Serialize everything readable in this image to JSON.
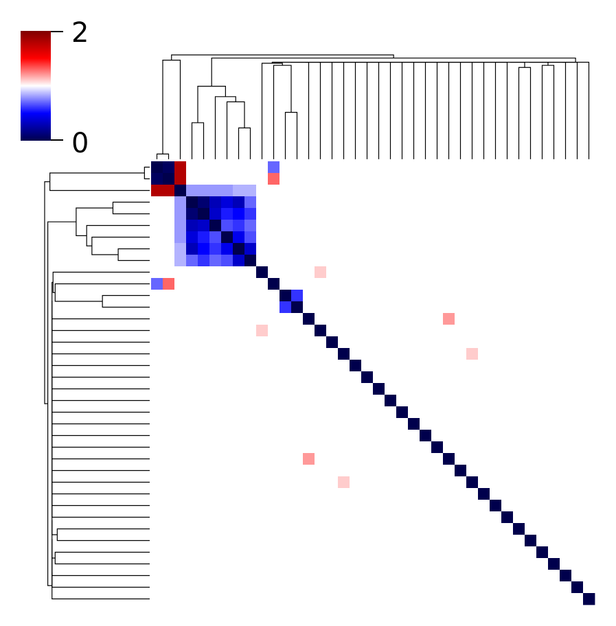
{
  "chart_data": {
    "type": "heatmap",
    "title": "",
    "n": 38,
    "colormap": "seismic",
    "colorbar": {
      "min": 0,
      "max": 2,
      "tick_labels": [
        "2",
        "0"
      ]
    },
    "diagonal": 0,
    "background": 1.0,
    "cells": [
      [
        0,
        1,
        0.05
      ],
      [
        0,
        2,
        1.8
      ],
      [
        0,
        10,
        0.7
      ],
      [
        1,
        2,
        1.8
      ],
      [
        1,
        10,
        1.3
      ],
      [
        3,
        4,
        0.1
      ],
      [
        3,
        5,
        0.3
      ],
      [
        3,
        6,
        0.4
      ],
      [
        3,
        7,
        0.3
      ],
      [
        3,
        8,
        0.7
      ],
      [
        3,
        2,
        0.8
      ],
      [
        4,
        5,
        0.35
      ],
      [
        4,
        6,
        0.55
      ],
      [
        4,
        7,
        0.5
      ],
      [
        4,
        8,
        0.6
      ],
      [
        4,
        2,
        0.8
      ],
      [
        5,
        6,
        0.65
      ],
      [
        5,
        7,
        0.6
      ],
      [
        5,
        8,
        0.7
      ],
      [
        5,
        2,
        0.8
      ],
      [
        6,
        7,
        0.45
      ],
      [
        6,
        8,
        0.65
      ],
      [
        6,
        2,
        0.8
      ],
      [
        7,
        8,
        0.35
      ],
      [
        7,
        2,
        0.85
      ],
      [
        8,
        2,
        0.85
      ],
      [
        11,
        12,
        0.6
      ],
      [
        13,
        25,
        1.2
      ],
      [
        25,
        13,
        1.2
      ],
      [
        14,
        9,
        1.1
      ],
      [
        27,
        16,
        1.1
      ]
    ],
    "leaf_order": [
      "0",
      "1",
      "2",
      "3",
      "4",
      "5",
      "6",
      "7",
      "8",
      "9",
      "10",
      "11",
      "12",
      "13",
      "14",
      "15",
      "16",
      "17",
      "18",
      "19",
      "20",
      "21",
      "22",
      "23",
      "24",
      "25",
      "26",
      "27",
      "28",
      "29",
      "30",
      "31",
      "32",
      "33",
      "34",
      "35",
      "36",
      "37"
    ]
  }
}
